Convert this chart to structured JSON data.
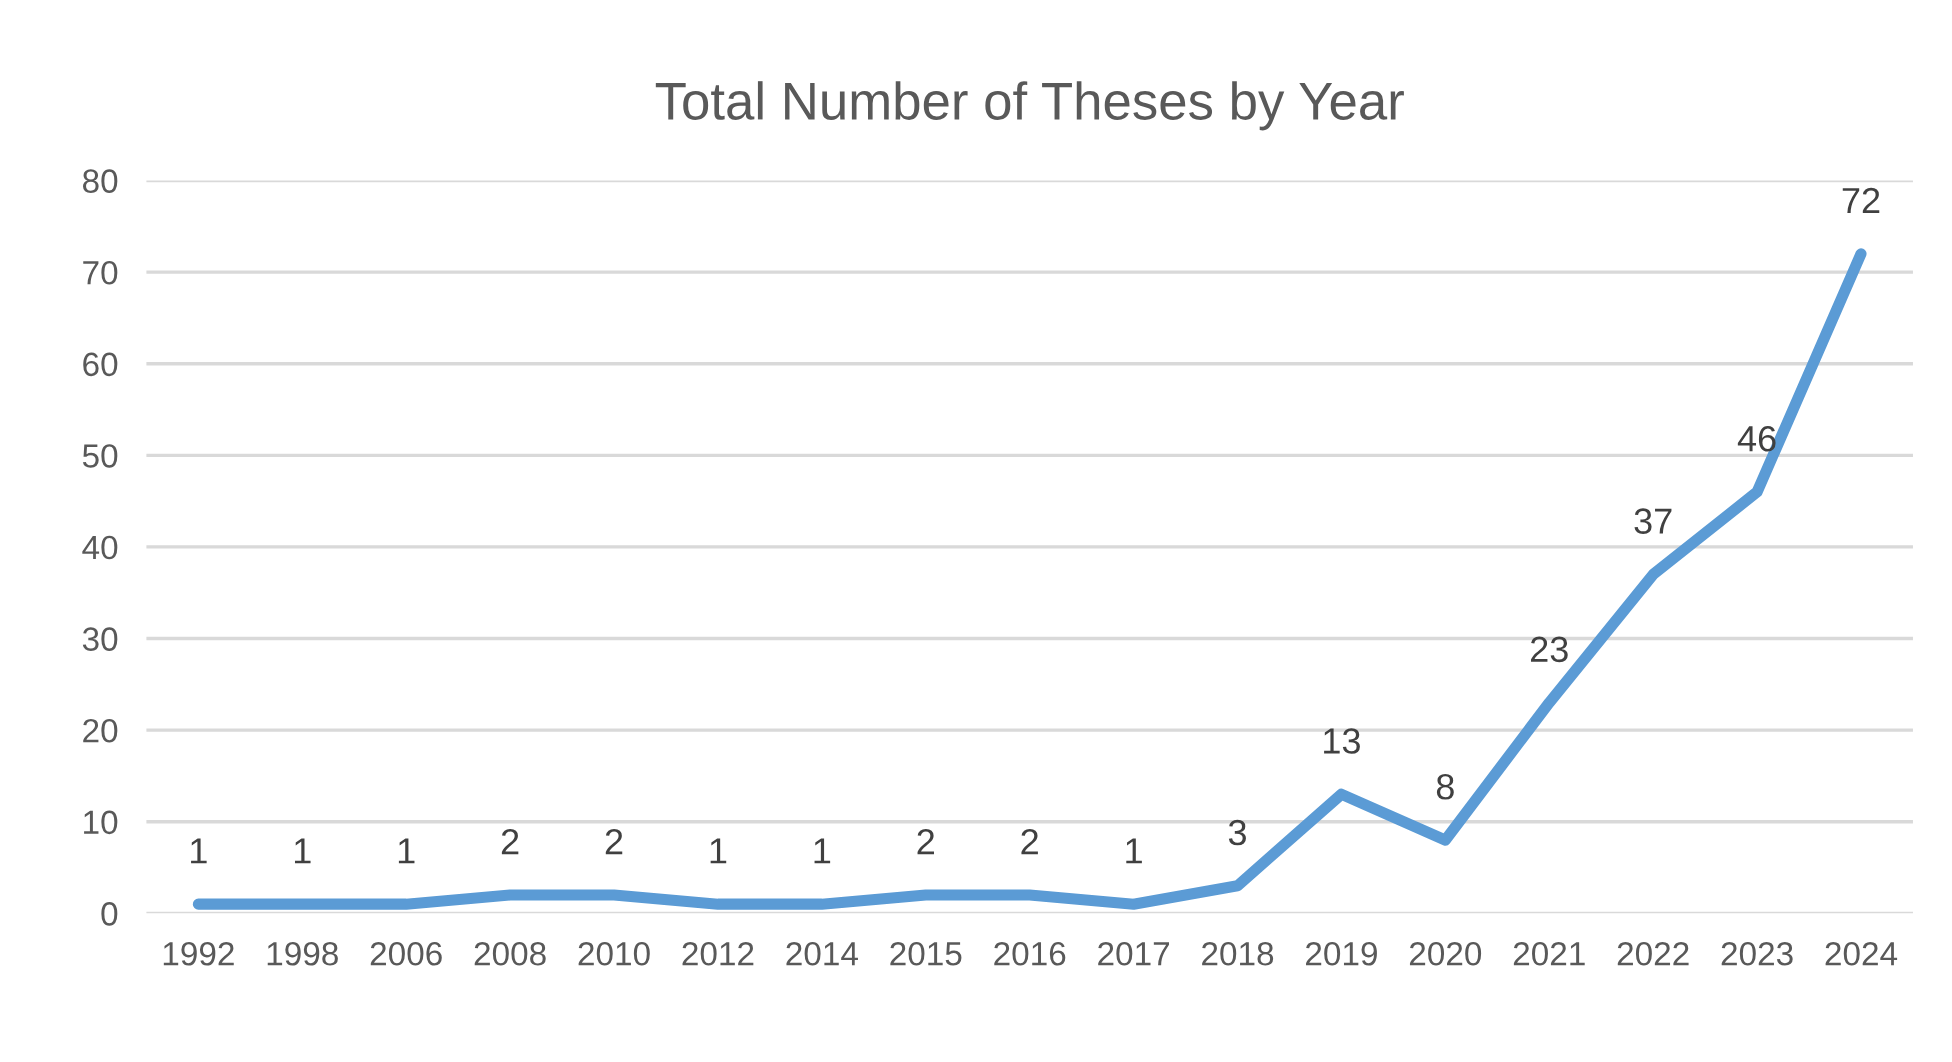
{
  "chart_data": {
    "type": "line",
    "title": "Total Number of Theses by Year",
    "categories": [
      "1992",
      "1998",
      "2006",
      "2008",
      "2010",
      "2012",
      "2014",
      "2015",
      "2016",
      "2017",
      "2018",
      "2019",
      "2020",
      "2021",
      "2022",
      "2023",
      "2024"
    ],
    "series": [
      {
        "color": "#5b9bd5",
        "values": [
          1,
          1,
          1,
          2,
          2,
          1,
          1,
          2,
          2,
          1,
          3,
          13,
          8,
          23,
          37,
          46,
          72
        ]
      }
    ],
    "ylim": [
      0,
      80
    ],
    "yticks": [
      0,
      10,
      20,
      30,
      40,
      50,
      60,
      70,
      80
    ],
    "grid": "y",
    "data_labels": true,
    "marker": "none",
    "line_style": "solid"
  }
}
